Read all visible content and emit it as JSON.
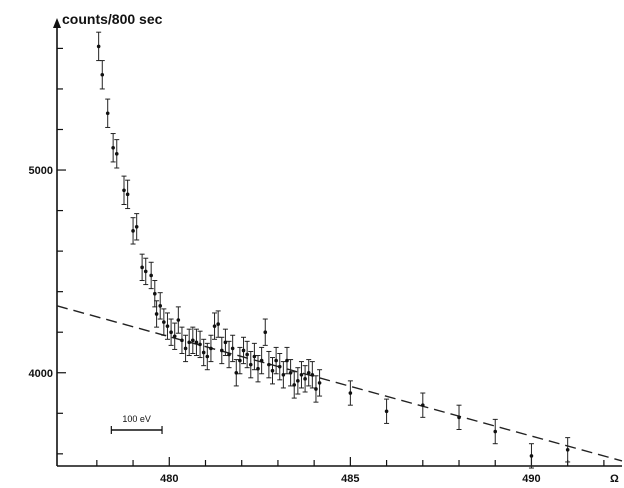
{
  "chart_data": {
    "type": "scatter",
    "ylabel": "counts/800 sec",
    "xlabel": "Ω",
    "xlim": [
      476.9,
      492.5
    ],
    "ylim": [
      3540,
      5750
    ],
    "x_ticks": [
      480,
      485,
      490
    ],
    "y_ticks": [
      4000,
      5000
    ],
    "scale_bar": {
      "label": "100 eV",
      "width": 1.4
    },
    "grid": false,
    "background_fit": {
      "style": "dashed",
      "points": [
        [
          476.9,
          4330
        ],
        [
          492.5,
          3565
        ]
      ]
    },
    "points": [
      {
        "x": 478.05,
        "y": 5610,
        "err": 70
      },
      {
        "x": 478.15,
        "y": 5470,
        "err": 70
      },
      {
        "x": 478.3,
        "y": 5280,
        "err": 70
      },
      {
        "x": 478.45,
        "y": 5110,
        "err": 70
      },
      {
        "x": 478.55,
        "y": 5080,
        "err": 70
      },
      {
        "x": 478.75,
        "y": 4900,
        "err": 70
      },
      {
        "x": 478.85,
        "y": 4880,
        "err": 70
      },
      {
        "x": 479.0,
        "y": 4700,
        "err": 65
      },
      {
        "x": 479.1,
        "y": 4720,
        "err": 65
      },
      {
        "x": 479.25,
        "y": 4520,
        "err": 65
      },
      {
        "x": 479.35,
        "y": 4500,
        "err": 65
      },
      {
        "x": 479.5,
        "y": 4480,
        "err": 65
      },
      {
        "x": 479.6,
        "y": 4390,
        "err": 65
      },
      {
        "x": 479.65,
        "y": 4290,
        "err": 65
      },
      {
        "x": 479.75,
        "y": 4330,
        "err": 65
      },
      {
        "x": 479.85,
        "y": 4250,
        "err": 65
      },
      {
        "x": 479.95,
        "y": 4230,
        "err": 65
      },
      {
        "x": 480.05,
        "y": 4200,
        "err": 65
      },
      {
        "x": 480.15,
        "y": 4180,
        "err": 65
      },
      {
        "x": 480.25,
        "y": 4260,
        "err": 65
      },
      {
        "x": 480.35,
        "y": 4160,
        "err": 65
      },
      {
        "x": 480.45,
        "y": 4120,
        "err": 65
      },
      {
        "x": 480.55,
        "y": 4150,
        "err": 65
      },
      {
        "x": 480.65,
        "y": 4160,
        "err": 65
      },
      {
        "x": 480.75,
        "y": 4150,
        "err": 65
      },
      {
        "x": 480.85,
        "y": 4140,
        "err": 65
      },
      {
        "x": 480.95,
        "y": 4100,
        "err": 65
      },
      {
        "x": 481.05,
        "y": 4080,
        "err": 65
      },
      {
        "x": 481.15,
        "y": 4120,
        "err": 65
      },
      {
        "x": 481.25,
        "y": 4230,
        "err": 65
      },
      {
        "x": 481.35,
        "y": 4240,
        "err": 65
      },
      {
        "x": 481.45,
        "y": 4110,
        "err": 65
      },
      {
        "x": 481.55,
        "y": 4150,
        "err": 65
      },
      {
        "x": 481.65,
        "y": 4090,
        "err": 65
      },
      {
        "x": 481.75,
        "y": 4120,
        "err": 65
      },
      {
        "x": 481.85,
        "y": 4000,
        "err": 65
      },
      {
        "x": 481.95,
        "y": 4060,
        "err": 65
      },
      {
        "x": 482.05,
        "y": 4110,
        "err": 65
      },
      {
        "x": 482.15,
        "y": 4090,
        "err": 65
      },
      {
        "x": 482.25,
        "y": 4040,
        "err": 65
      },
      {
        "x": 482.35,
        "y": 4080,
        "err": 65
      },
      {
        "x": 482.45,
        "y": 4020,
        "err": 65
      },
      {
        "x": 482.55,
        "y": 4060,
        "err": 65
      },
      {
        "x": 482.65,
        "y": 4200,
        "err": 65
      },
      {
        "x": 482.75,
        "y": 4040,
        "err": 65
      },
      {
        "x": 482.85,
        "y": 4010,
        "err": 65
      },
      {
        "x": 482.95,
        "y": 4060,
        "err": 65
      },
      {
        "x": 483.05,
        "y": 4030,
        "err": 65
      },
      {
        "x": 483.15,
        "y": 3990,
        "err": 65
      },
      {
        "x": 483.25,
        "y": 4060,
        "err": 65
      },
      {
        "x": 483.35,
        "y": 4000,
        "err": 65
      },
      {
        "x": 483.45,
        "y": 3940,
        "err": 65
      },
      {
        "x": 483.55,
        "y": 3960,
        "err": 65
      },
      {
        "x": 483.65,
        "y": 3990,
        "err": 65
      },
      {
        "x": 483.75,
        "y": 3970,
        "err": 65
      },
      {
        "x": 483.85,
        "y": 4000,
        "err": 65
      },
      {
        "x": 483.95,
        "y": 3990,
        "err": 65
      },
      {
        "x": 484.05,
        "y": 3920,
        "err": 65
      },
      {
        "x": 484.15,
        "y": 3950,
        "err": 65
      },
      {
        "x": 485.0,
        "y": 3900,
        "err": 60
      },
      {
        "x": 486.0,
        "y": 3810,
        "err": 60
      },
      {
        "x": 487.0,
        "y": 3840,
        "err": 60
      },
      {
        "x": 488.0,
        "y": 3780,
        "err": 60
      },
      {
        "x": 489.0,
        "y": 3710,
        "err": 60
      },
      {
        "x": 490.0,
        "y": 3590,
        "err": 60
      },
      {
        "x": 491.0,
        "y": 3620,
        "err": 60
      }
    ]
  }
}
